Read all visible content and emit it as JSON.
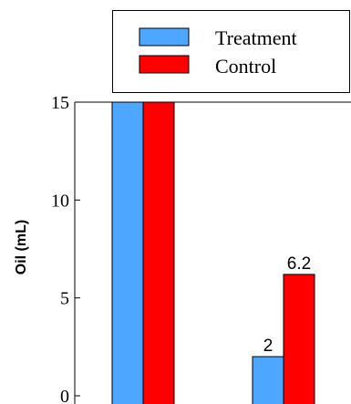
{
  "chart_data": {
    "type": "bar",
    "ylabel": "Oil (mL)",
    "ylim": [
      0,
      15
    ],
    "yticks": [
      0,
      5,
      10,
      15
    ],
    "grid": false,
    "legend_position": "top",
    "categories": [
      "",
      ""
    ],
    "series": [
      {
        "name": "Treatment",
        "color": "#4da6ff",
        "values": [
          15,
          2
        ]
      },
      {
        "name": "Control",
        "color": "#ff0000",
        "values": [
          15,
          6.2
        ]
      }
    ],
    "data_labels": [
      {
        "category_index": 1,
        "series_index": 0,
        "text": "2"
      },
      {
        "category_index": 1,
        "series_index": 1,
        "text": "6.2"
      }
    ]
  }
}
